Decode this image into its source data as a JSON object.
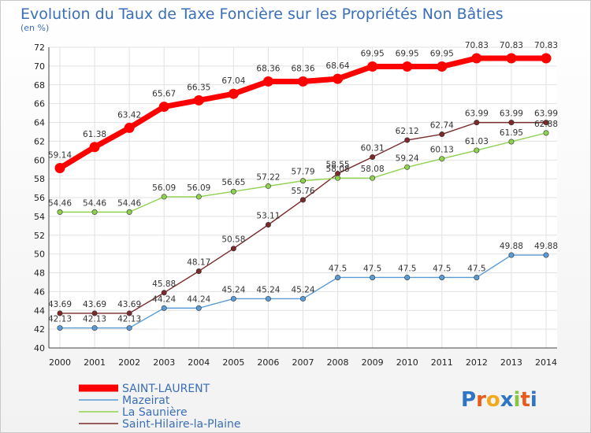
{
  "chart_data": {
    "type": "line",
    "title": "Evolution du Taux de Taxe Foncière sur les Propriétés Non Bâties",
    "ylabel": "(en %)",
    "xlabel": "",
    "ylim": [
      40,
      72
    ],
    "yticks": [
      40,
      42,
      44,
      46,
      48,
      50,
      52,
      54,
      56,
      58,
      60,
      62,
      64,
      66,
      68,
      70,
      72
    ],
    "grid": true,
    "legend_position": "bottom-left",
    "x": [
      "2000",
      "2001",
      "2002",
      "2003",
      "2004",
      "2005",
      "2006",
      "2007",
      "2008",
      "2009",
      "2010",
      "2011",
      "2012",
      "2013",
      "2014"
    ],
    "series": [
      {
        "name": "SAINT-LAURENT",
        "color": "#ff0000",
        "values": [
          59.14,
          61.38,
          63.42,
          65.67,
          66.35,
          67.04,
          68.36,
          68.36,
          68.64,
          69.95,
          69.95,
          69.95,
          70.83,
          70.83,
          70.83
        ],
        "labels": [
          "59.14",
          "61.38",
          "63.42",
          "65.67",
          "66.35",
          "67.04",
          "68.36",
          "68.36",
          "68.64",
          "69.95",
          "69.95",
          "69.95",
          "70.83",
          "70.83",
          "70.83"
        ]
      },
      {
        "name": "Mazeirat",
        "color": "#5b9bd5",
        "values": [
          42.13,
          42.13,
          42.13,
          44.24,
          44.24,
          45.24,
          45.24,
          45.24,
          47.5,
          47.5,
          47.5,
          47.5,
          47.5,
          49.88,
          49.88
        ],
        "labels": [
          "42.13",
          "42.13",
          "42.13",
          "44.24",
          "44.24",
          "45.24",
          "45.24",
          "45.24",
          "47.5",
          "47.5",
          "47.5",
          "47.5",
          "47.5",
          "49.88",
          "49.88"
        ]
      },
      {
        "name": "La Saunière",
        "color": "#8fd14f",
        "values": [
          54.46,
          54.46,
          54.46,
          56.09,
          56.09,
          56.65,
          57.22,
          57.79,
          58.08,
          58.08,
          59.24,
          60.13,
          61.03,
          61.95,
          62.88
        ],
        "labels": [
          "54.46",
          "54.46",
          "54.46",
          "56.09",
          "56.09",
          "56.65",
          "57.22",
          "57.79",
          "58.08",
          "58.08",
          "59.24",
          "60.13",
          "61.03",
          "61.95",
          "62.88"
        ]
      },
      {
        "name": "Saint-Hilaire-la-Plaine",
        "color": "#7b2a2a",
        "values": [
          43.69,
          43.69,
          43.69,
          45.88,
          48.17,
          50.58,
          53.11,
          55.76,
          58.55,
          60.31,
          62.12,
          62.74,
          63.99,
          63.99,
          63.99
        ],
        "labels": [
          "43.69",
          "43.69",
          "43.69",
          "45.88",
          "48.17",
          "50.58",
          "53.11",
          "55.76",
          "58.55",
          "60.31",
          "62.12",
          "62.74",
          "63.99",
          "63.99",
          "63.99"
        ]
      }
    ]
  },
  "branding": {
    "logo_text": "Proxiti",
    "letters": [
      "P",
      "r",
      "o",
      "x",
      "i",
      "t",
      "i"
    ],
    "letter_colors": [
      "#2e75c4",
      "#e85c1b",
      "#f2a91d",
      "#2e75c4",
      "#89c540",
      "#e85c1b",
      "#2e75c4"
    ]
  }
}
